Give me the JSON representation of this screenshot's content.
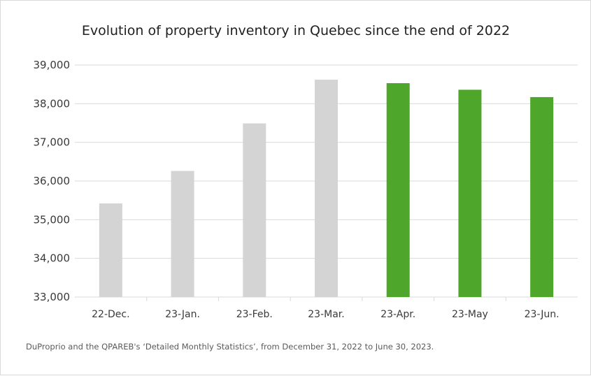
{
  "chart_data": {
    "type": "bar",
    "title": "Evolution of property inventory in Quebec since the end of 2022",
    "categories": [
      "22-Dec.",
      "23-Jan.",
      "23-Feb.",
      "23-Mar.",
      "23-Apr.",
      "23-May",
      "23-Jun."
    ],
    "values": [
      35420,
      36260,
      37490,
      38620,
      38530,
      38360,
      38170
    ],
    "bar_colors": [
      "#d4d4d4",
      "#d4d4d4",
      "#d4d4d4",
      "#d4d4d4",
      "#4ea72a",
      "#4ea72a",
      "#4ea72a"
    ],
    "ylim": [
      33000,
      39000
    ],
    "yticks": [
      33000,
      34000,
      35000,
      36000,
      37000,
      38000,
      39000
    ],
    "ytick_labels": [
      "33,000",
      "34,000",
      "35,000",
      "36,000",
      "37,000",
      "38,000",
      "39,000"
    ],
    "grid": true,
    "xlabel": "",
    "ylabel": ""
  },
  "source_note": "DuProprio and the QPAREB's ‘Detailed Monthly Statistics’, from December 31, 2022 to June 30, 2023."
}
